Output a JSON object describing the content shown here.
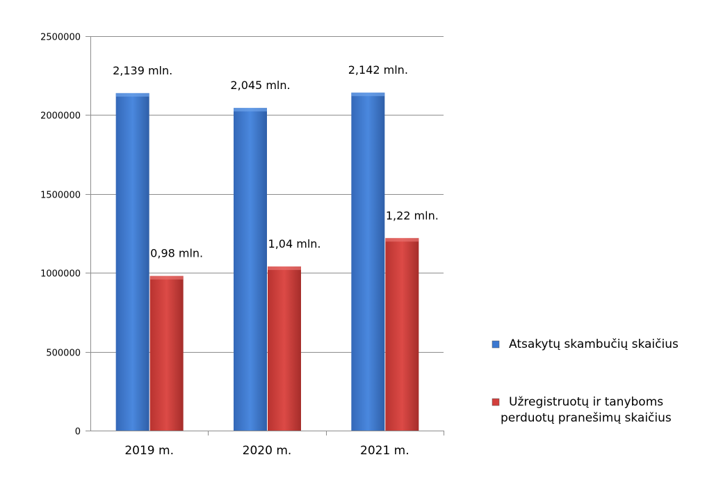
{
  "chart_data": {
    "type": "bar",
    "categories": [
      "2019 m.",
      "2020 m.",
      "2021 m."
    ],
    "series": [
      {
        "name": "Atsakytų skambučių skaičius",
        "values": [
          2139000,
          2045000,
          2142000
        ],
        "labels": [
          "2,139 mln.",
          "2,045 mln.",
          "2,142 mln."
        ],
        "color": "#3b78d0"
      },
      {
        "name": "Užregistruotų ir tanyboms perduotų pranešimų skaičius",
        "values": [
          980000,
          1040000,
          1220000
        ],
        "labels": [
          "0,98 mln.",
          "1,04 mln.",
          "1,22 mln."
        ],
        "color": "#d23f3c"
      }
    ],
    "legend_lines": [
      [
        "Atsakytų skambučių skaičius"
      ],
      [
        "Užregistruotų ir tanyboms",
        "perduotų pranešimų skaičius"
      ]
    ],
    "ylim": [
      0,
      2500000
    ],
    "yticks": [
      "0",
      "500000",
      "1000000",
      "1500000",
      "2000000",
      "2500000"
    ],
    "ytick_values": [
      0,
      500000,
      1000000,
      1500000,
      2000000,
      2500000
    ],
    "grid": true,
    "legend_position": "right",
    "title": "",
    "xlabel": "",
    "ylabel": ""
  }
}
